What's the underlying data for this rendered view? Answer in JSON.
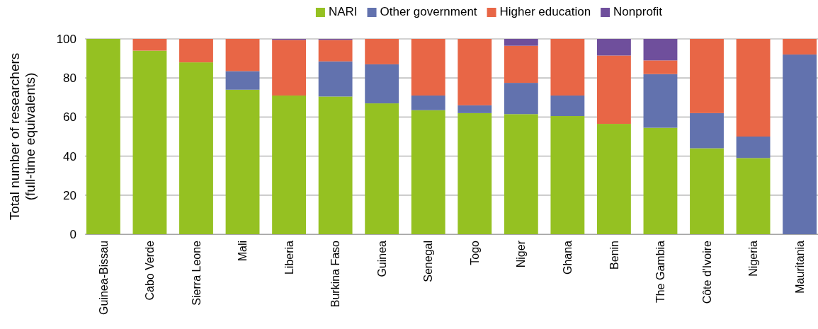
{
  "chart_data": {
    "type": "bar",
    "stacked": true,
    "ylabel": "Total number of researchers\n(full-time equivalents)",
    "categories": [
      "Guinea-Bissau",
      "Cabo Verde",
      "Sierra Leone",
      "Mali",
      "Liberia",
      "Burkina Faso",
      "Guinea",
      "Senegal",
      "Togo",
      "Niger",
      "Ghana",
      "Benin",
      "The Gambia",
      "Côte d'Ivoire",
      "Nigeria",
      "Mauritania"
    ],
    "series": [
      {
        "name": "NARI",
        "color": "#95c122",
        "values": [
          100,
          94,
          88,
          74,
          71,
          70.5,
          67,
          63.5,
          62,
          61.5,
          60.5,
          56.5,
          54.5,
          44,
          39,
          0
        ]
      },
      {
        "name": "Other government",
        "color": "#6272ae",
        "values": [
          0,
          0,
          0,
          9.5,
          0,
          18,
          20,
          7.5,
          4,
          16,
          10.5,
          0,
          27.5,
          18,
          11,
          92
        ]
      },
      {
        "name": "Higher education",
        "color": "#e86646",
        "values": [
          0,
          6,
          12,
          16.5,
          28.5,
          11,
          13,
          29,
          34,
          19,
          29,
          35,
          7,
          38,
          50,
          8
        ]
      },
      {
        "name": "Nonprofit",
        "color": "#6f4f9c",
        "values": [
          0,
          0,
          0,
          0,
          0.5,
          0.5,
          0,
          0,
          0,
          3.5,
          0,
          8.5,
          11,
          0,
          0,
          0
        ]
      }
    ],
    "ylim": [
      0,
      100
    ],
    "yticks": [
      0,
      20,
      40,
      60,
      80,
      100
    ],
    "grid": "y",
    "legend": "top"
  }
}
